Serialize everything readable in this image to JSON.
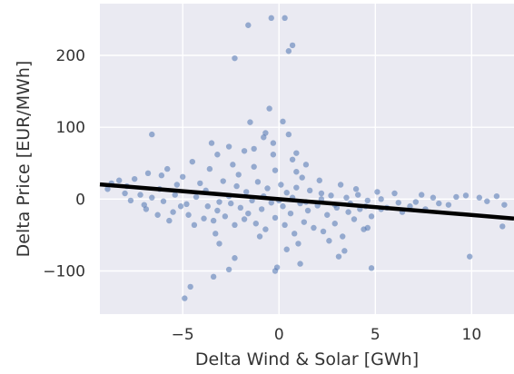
{
  "chart_data": {
    "type": "scatter",
    "title": "",
    "xlabel": "Delta Wind & Solar [GWh]",
    "ylabel": "Delta Price [EUR/MWh]",
    "xlim": [
      -9.3,
      12.2
    ],
    "ylim": [
      -160,
      272
    ],
    "xticks": [
      -5,
      0,
      5,
      10
    ],
    "xtick_labels": [
      "−5",
      "0",
      "5",
      "10"
    ],
    "yticks": [
      -100,
      0,
      100,
      200
    ],
    "ytick_labels": [
      "−100",
      "0",
      "100",
      "200"
    ],
    "grid": true,
    "plot_background": "#eaeaf2",
    "point_color": "#4c72b0",
    "trend_color": "#000000",
    "trend_line": {
      "x": [
        -9.3,
        12.2
      ],
      "y": [
        20.5,
        -27.0
      ]
    },
    "points": [
      [
        -0.4,
        252
      ],
      [
        0.3,
        252
      ],
      [
        -1.6,
        242
      ],
      [
        0.7,
        214
      ],
      [
        0.5,
        206
      ],
      [
        -2.3,
        196
      ],
      [
        -0.5,
        126
      ],
      [
        -6.6,
        90
      ],
      [
        -1.5,
        107
      ],
      [
        0.2,
        108
      ],
      [
        -0.7,
        92
      ],
      [
        0.5,
        90
      ],
      [
        -0.8,
        86
      ],
      [
        -3.5,
        78
      ],
      [
        -2.6,
        73
      ],
      [
        -3.2,
        62
      ],
      [
        0.7,
        55
      ],
      [
        -1.8,
        67
      ],
      [
        1.4,
        48
      ],
      [
        -4.5,
        52
      ],
      [
        -0.3,
        62
      ],
      [
        -5.8,
        42
      ],
      [
        -6.8,
        36
      ],
      [
        -2.1,
        34
      ],
      [
        0.9,
        38
      ],
      [
        -7.5,
        28
      ],
      [
        -8.3,
        26
      ],
      [
        -8.7,
        22
      ],
      [
        -8.9,
        14
      ],
      [
        -7.9,
        18
      ],
      [
        -5.3,
        20
      ],
      [
        -6.2,
        14
      ],
      [
        -4.1,
        22
      ],
      [
        -3.8,
        12
      ],
      [
        -2.9,
        25
      ],
      [
        -2.2,
        18
      ],
      [
        -1.7,
        10
      ],
      [
        -1.1,
        24
      ],
      [
        -0.6,
        15
      ],
      [
        0.1,
        20
      ],
      [
        0.4,
        9
      ],
      [
        0.9,
        16
      ],
      [
        1.6,
        12
      ],
      [
        2.2,
        8
      ],
      [
        2.7,
        5
      ],
      [
        3.5,
        2
      ],
      [
        4.1,
        6
      ],
      [
        4.6,
        -2
      ],
      [
        5.3,
        0
      ],
      [
        6.2,
        -5
      ],
      [
        7.1,
        -4
      ],
      [
        8.3,
        -6
      ],
      [
        9.2,
        3
      ],
      [
        9.7,
        5
      ],
      [
        10.4,
        2
      ],
      [
        11.3,
        4
      ],
      [
        10.8,
        -3
      ],
      [
        11.7,
        -8
      ],
      [
        -7.2,
        6
      ],
      [
        -6.6,
        2
      ],
      [
        -6.0,
        -3
      ],
      [
        -5.4,
        6
      ],
      [
        -4.8,
        -7
      ],
      [
        -4.3,
        3
      ],
      [
        -3.7,
        -10
      ],
      [
        -3.1,
        -4
      ],
      [
        -2.6,
        4
      ],
      [
        -2.0,
        -12
      ],
      [
        -1.4,
        -2
      ],
      [
        -0.9,
        -14
      ],
      [
        -0.4,
        -5
      ],
      [
        0.2,
        -10
      ],
      [
        0.6,
        -20
      ],
      [
        1.1,
        -6
      ],
      [
        1.5,
        -16
      ],
      [
        2.0,
        -9
      ],
      [
        2.5,
        -22
      ],
      [
        3.0,
        -12
      ],
      [
        3.6,
        -18
      ],
      [
        4.2,
        -14
      ],
      [
        4.8,
        -24
      ],
      [
        5.6,
        -12
      ],
      [
        6.4,
        -18
      ],
      [
        -6.9,
        -14
      ],
      [
        -5.5,
        -18
      ],
      [
        -4.7,
        -22
      ],
      [
        -3.9,
        -27
      ],
      [
        -3.4,
        -30
      ],
      [
        -2.8,
        -24
      ],
      [
        -2.3,
        -36
      ],
      [
        -1.8,
        -28
      ],
      [
        -1.2,
        -34
      ],
      [
        -0.7,
        -42
      ],
      [
        -0.2,
        -26
      ],
      [
        0.3,
        -36
      ],
      [
        0.8,
        -48
      ],
      [
        1.3,
        -32
      ],
      [
        1.8,
        -40
      ],
      [
        2.3,
        -45
      ],
      [
        2.9,
        -34
      ],
      [
        3.3,
        -52
      ],
      [
        3.9,
        -28
      ],
      [
        4.4,
        -42
      ],
      [
        -3.3,
        -48
      ],
      [
        -1.0,
        -52
      ],
      [
        1.0,
        -62
      ],
      [
        2.6,
        -58
      ],
      [
        -3.1,
        -62
      ],
      [
        0.4,
        -70
      ],
      [
        3.4,
        -72
      ],
      [
        4.6,
        -40
      ],
      [
        -2.3,
        -82
      ],
      [
        -0.1,
        -95
      ],
      [
        1.1,
        -90
      ],
      [
        3.1,
        -80
      ],
      [
        -0.2,
        -100
      ],
      [
        4.8,
        -96
      ],
      [
        -2.6,
        -98
      ],
      [
        -3.4,
        -108
      ],
      [
        -4.6,
        -122
      ],
      [
        -4.9,
        -138
      ],
      [
        9.9,
        -80
      ],
      [
        11.6,
        -38
      ],
      [
        -6.1,
        33
      ],
      [
        -5.0,
        31
      ],
      [
        -3.6,
        42
      ],
      [
        -2.4,
        48
      ],
      [
        -1.3,
        45
      ],
      [
        -0.2,
        40
      ],
      [
        1.2,
        30
      ],
      [
        2.1,
        26
      ],
      [
        3.2,
        20
      ],
      [
        4.0,
        14
      ],
      [
        5.1,
        10
      ],
      [
        6.0,
        8
      ],
      [
        7.4,
        6
      ],
      [
        8.0,
        2
      ],
      [
        -8.0,
        8
      ],
      [
        -7.7,
        -2
      ],
      [
        -7.0,
        -8
      ],
      [
        -6.3,
        -22
      ],
      [
        -5.7,
        -30
      ],
      [
        -5.1,
        -10
      ],
      [
        -4.4,
        -36
      ],
      [
        -3.2,
        -16
      ],
      [
        -2.5,
        -6
      ],
      [
        -1.6,
        -20
      ],
      [
        -0.8,
        4
      ],
      [
        0.0,
        -2
      ],
      [
        0.7,
        2
      ],
      [
        1.4,
        -4
      ],
      [
        2.2,
        0
      ],
      [
        2.9,
        -8
      ],
      [
        3.7,
        -6
      ],
      [
        4.5,
        -10
      ],
      [
        5.3,
        -14
      ],
      [
        6.8,
        -10
      ],
      [
        7.6,
        -14
      ],
      [
        8.8,
        -8
      ],
      [
        -1.3,
        70
      ],
      [
        -0.3,
        78
      ],
      [
        0.9,
        64
      ]
    ]
  }
}
